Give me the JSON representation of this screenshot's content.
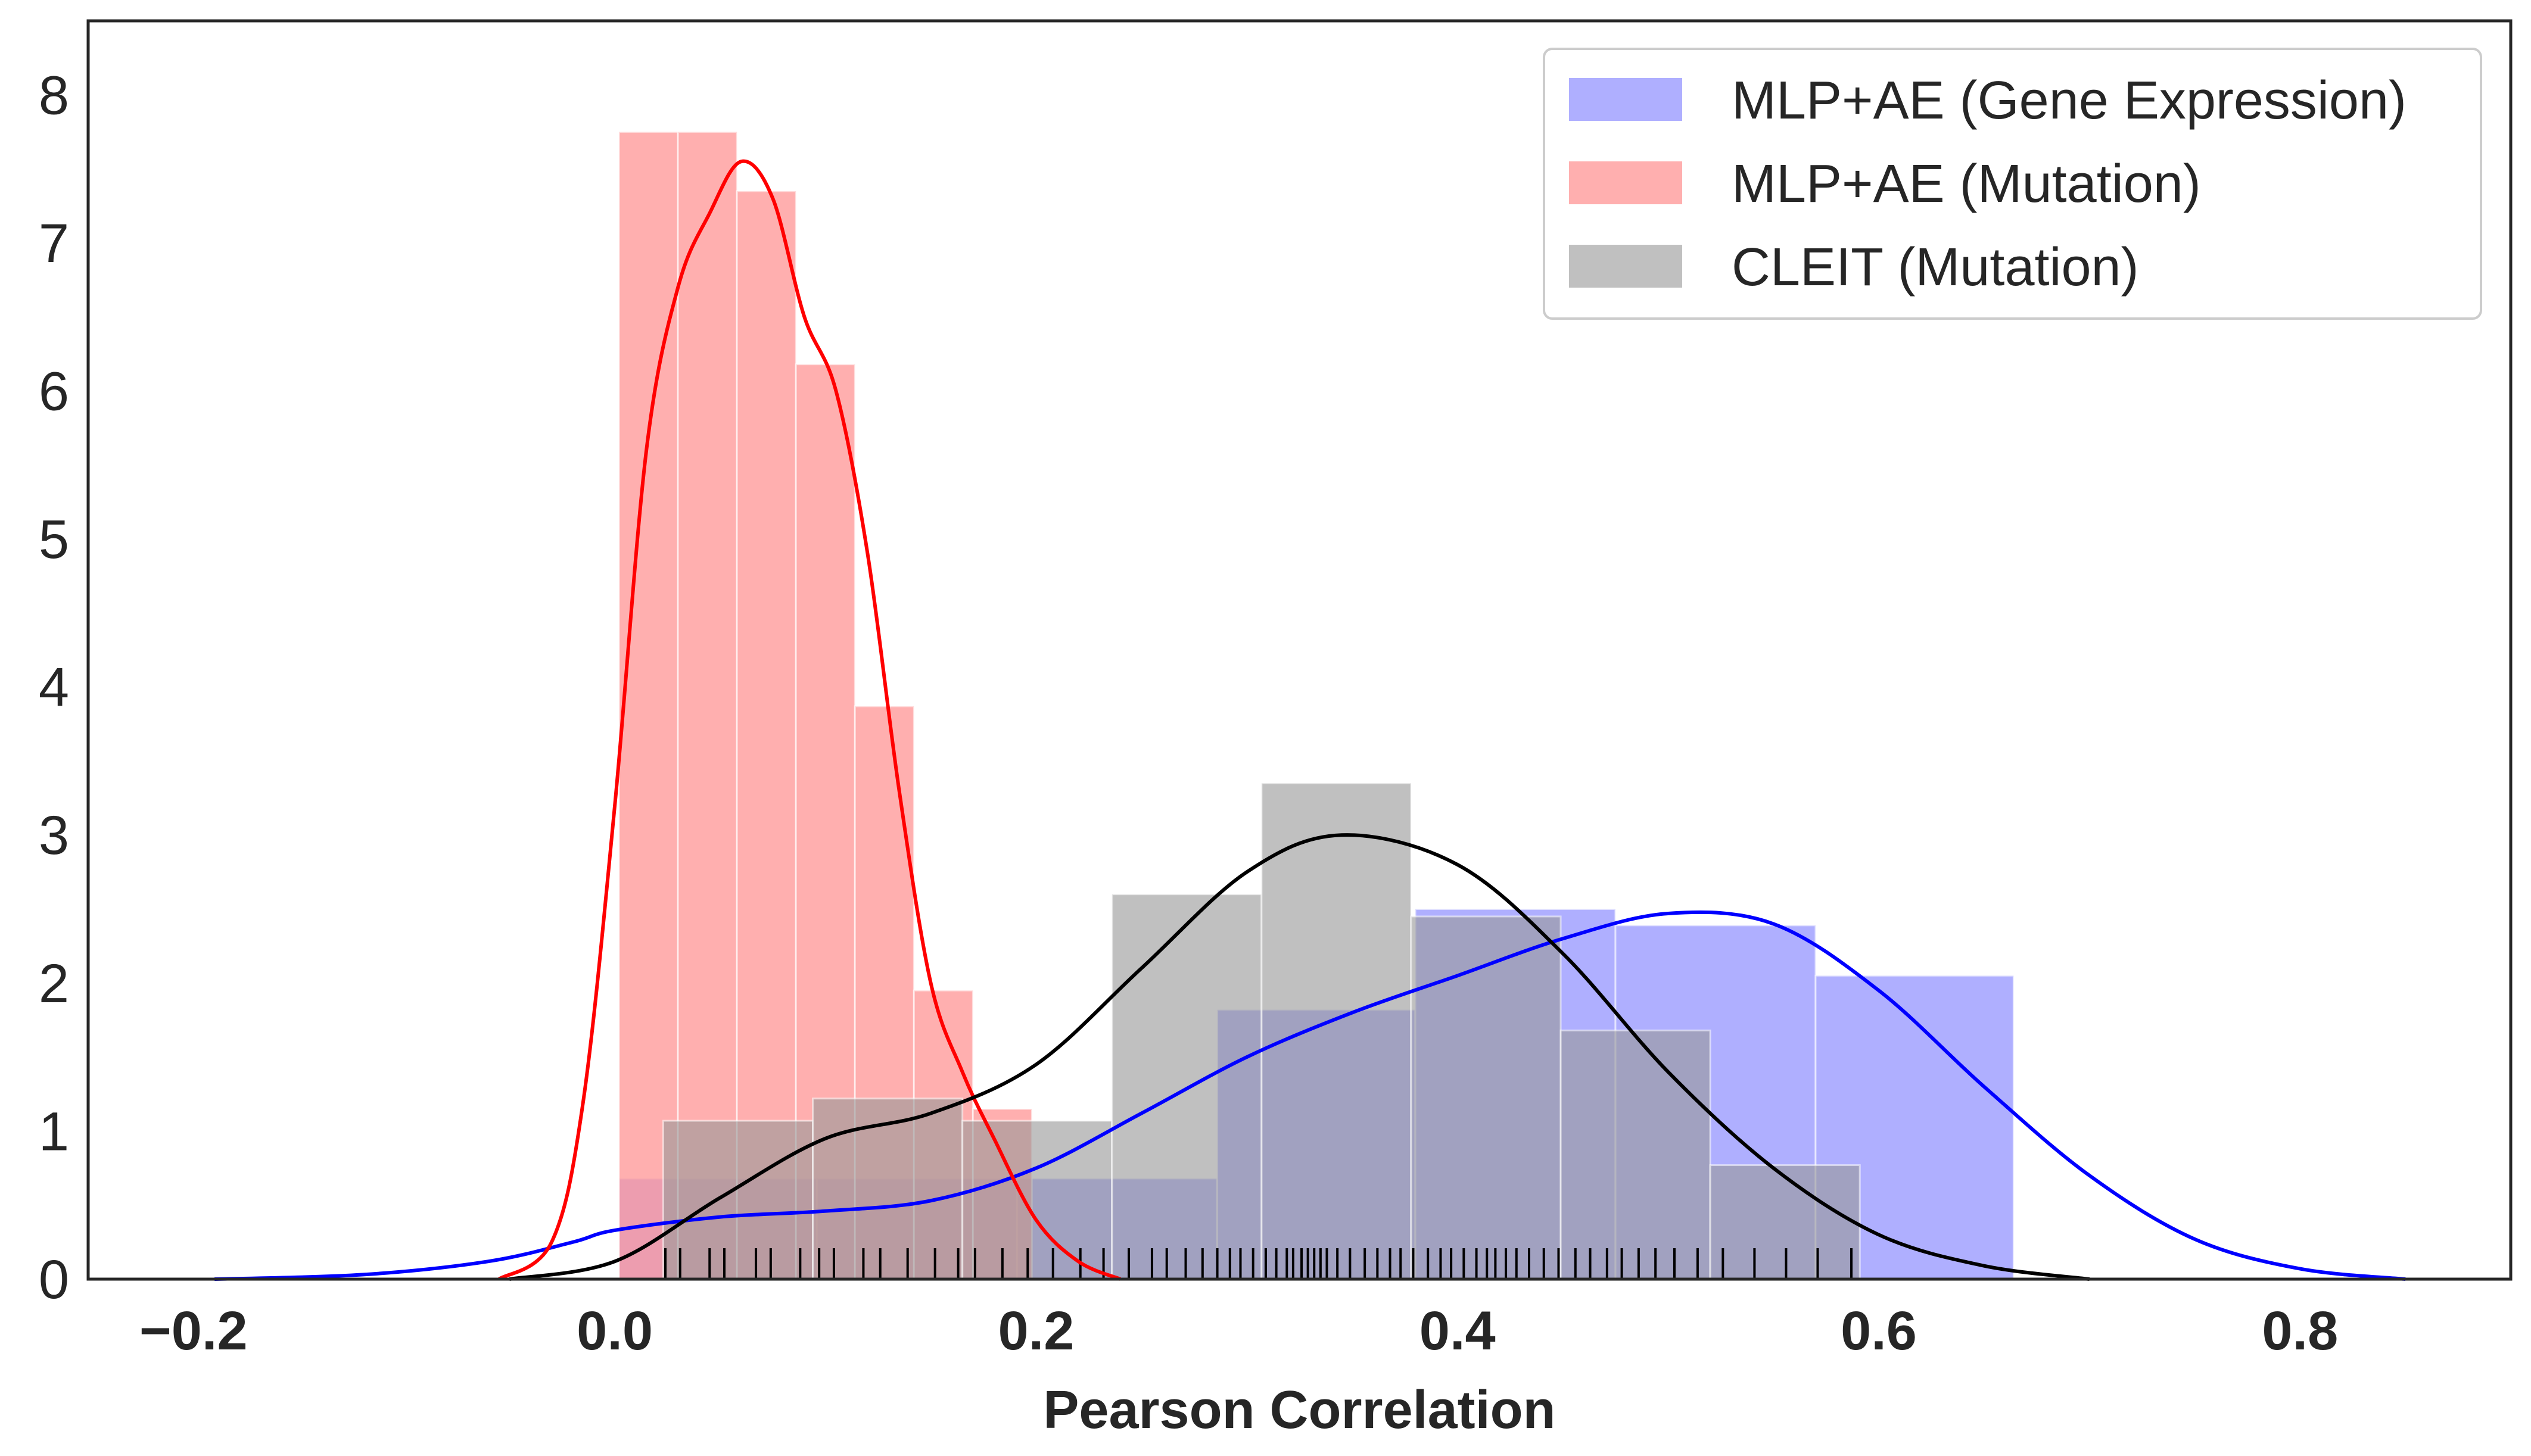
{
  "chart_data": {
    "type": "histogram",
    "title": "",
    "xlabel": "Pearson Correlation",
    "ylabel": "",
    "xlim": [
      -0.25,
      0.9
    ],
    "ylim": [
      0,
      8.5
    ],
    "xticks": [
      -0.2,
      0.0,
      0.2,
      0.4,
      0.6,
      0.8
    ],
    "xtick_labels": [
      "−0.2",
      "0.0",
      "0.2",
      "0.4",
      "0.6",
      "0.8"
    ],
    "yticks": [
      0,
      1,
      2,
      3,
      4,
      5,
      6,
      7,
      8
    ],
    "ytick_labels": [
      "0",
      "1",
      "2",
      "3",
      "4",
      "5",
      "6",
      "7",
      "8"
    ],
    "grid": false,
    "legend_position": "top-right",
    "series": [
      {
        "name": "MLP+AE (Gene Expression)",
        "fill_color": "#9999ff",
        "line_color": "#0000ff",
        "bins": [
          {
            "x0": 0.002,
            "x1": 0.096,
            "h": 0.68
          },
          {
            "x0": 0.096,
            "x1": 0.191,
            "h": 0.68
          },
          {
            "x0": 0.191,
            "x1": 0.286,
            "h": 0.68
          },
          {
            "x0": 0.286,
            "x1": 0.38,
            "h": 1.82
          },
          {
            "x0": 0.38,
            "x1": 0.475,
            "h": 2.5
          },
          {
            "x0": 0.475,
            "x1": 0.57,
            "h": 2.39
          },
          {
            "x0": 0.57,
            "x1": 0.664,
            "h": 2.05
          }
        ],
        "kde": [
          [
            -0.19,
            0.0
          ],
          [
            -0.12,
            0.03
          ],
          [
            -0.06,
            0.12
          ],
          [
            -0.02,
            0.25
          ],
          [
            0.0,
            0.33
          ],
          [
            0.05,
            0.42
          ],
          [
            0.1,
            0.46
          ],
          [
            0.15,
            0.53
          ],
          [
            0.2,
            0.75
          ],
          [
            0.25,
            1.12
          ],
          [
            0.3,
            1.5
          ],
          [
            0.35,
            1.8
          ],
          [
            0.4,
            2.05
          ],
          [
            0.45,
            2.3
          ],
          [
            0.5,
            2.47
          ],
          [
            0.55,
            2.4
          ],
          [
            0.6,
            1.95
          ],
          [
            0.65,
            1.3
          ],
          [
            0.7,
            0.7
          ],
          [
            0.75,
            0.27
          ],
          [
            0.8,
            0.07
          ],
          [
            0.85,
            0.0
          ]
        ]
      },
      {
        "name": "MLP+AE (Mutation)",
        "fill_color": "#ff9999",
        "line_color": "#ff0000",
        "bins": [
          {
            "x0": 0.002,
            "x1": 0.03,
            "h": 7.75
          },
          {
            "x0": 0.03,
            "x1": 0.058,
            "h": 7.75
          },
          {
            "x0": 0.058,
            "x1": 0.086,
            "h": 7.35
          },
          {
            "x0": 0.086,
            "x1": 0.114,
            "h": 6.18
          },
          {
            "x0": 0.114,
            "x1": 0.142,
            "h": 3.87
          },
          {
            "x0": 0.142,
            "x1": 0.17,
            "h": 1.95
          },
          {
            "x0": 0.17,
            "x1": 0.198,
            "h": 1.15
          }
        ],
        "kde": [
          [
            -0.055,
            0.0
          ],
          [
            -0.03,
            0.25
          ],
          [
            -0.015,
            1.2
          ],
          [
            0.0,
            3.2
          ],
          [
            0.015,
            5.6
          ],
          [
            0.03,
            6.7
          ],
          [
            0.045,
            7.2
          ],
          [
            0.06,
            7.55
          ],
          [
            0.075,
            7.3
          ],
          [
            0.09,
            6.5
          ],
          [
            0.105,
            6.0
          ],
          [
            0.12,
            4.9
          ],
          [
            0.135,
            3.3
          ],
          [
            0.15,
            2.0
          ],
          [
            0.165,
            1.4
          ],
          [
            0.18,
            0.95
          ],
          [
            0.2,
            0.4
          ],
          [
            0.22,
            0.12
          ],
          [
            0.24,
            0.0
          ]
        ]
      },
      {
        "name": "CLEIT (Mutation)",
        "fill_color": "#999999",
        "line_color": "#000000",
        "bins": [
          {
            "x0": 0.023,
            "x1": 0.094,
            "h": 1.07
          },
          {
            "x0": 0.094,
            "x1": 0.165,
            "h": 1.22
          },
          {
            "x0": 0.165,
            "x1": 0.236,
            "h": 1.07
          },
          {
            "x0": 0.236,
            "x1": 0.307,
            "h": 2.6
          },
          {
            "x0": 0.307,
            "x1": 0.378,
            "h": 3.35
          },
          {
            "x0": 0.378,
            "x1": 0.449,
            "h": 2.45
          },
          {
            "x0": 0.449,
            "x1": 0.52,
            "h": 1.68
          },
          {
            "x0": 0.52,
            "x1": 0.591,
            "h": 0.77
          }
        ],
        "kde": [
          [
            -0.05,
            0.0
          ],
          [
            0.0,
            0.12
          ],
          [
            0.05,
            0.55
          ],
          [
            0.1,
            0.95
          ],
          [
            0.15,
            1.12
          ],
          [
            0.2,
            1.45
          ],
          [
            0.25,
            2.1
          ],
          [
            0.3,
            2.75
          ],
          [
            0.345,
            3.0
          ],
          [
            0.4,
            2.8
          ],
          [
            0.45,
            2.2
          ],
          [
            0.5,
            1.4
          ],
          [
            0.55,
            0.75
          ],
          [
            0.6,
            0.3
          ],
          [
            0.65,
            0.09
          ],
          [
            0.7,
            0.0
          ]
        ]
      }
    ],
    "rug": [
      0.024,
      0.031,
      0.045,
      0.052,
      0.067,
      0.074,
      0.088,
      0.097,
      0.104,
      0.118,
      0.126,
      0.139,
      0.152,
      0.163,
      0.171,
      0.184,
      0.196,
      0.208,
      0.221,
      0.232,
      0.244,
      0.255,
      0.262,
      0.271,
      0.279,
      0.286,
      0.292,
      0.297,
      0.303,
      0.309,
      0.314,
      0.319,
      0.322,
      0.326,
      0.329,
      0.332,
      0.335,
      0.338,
      0.343,
      0.349,
      0.356,
      0.362,
      0.368,
      0.373,
      0.379,
      0.386,
      0.392,
      0.397,
      0.403,
      0.409,
      0.414,
      0.418,
      0.423,
      0.428,
      0.434,
      0.441,
      0.448,
      0.456,
      0.463,
      0.471,
      0.478,
      0.486,
      0.494,
      0.503,
      0.514,
      0.526,
      0.541,
      0.556,
      0.571,
      0.587
    ]
  }
}
